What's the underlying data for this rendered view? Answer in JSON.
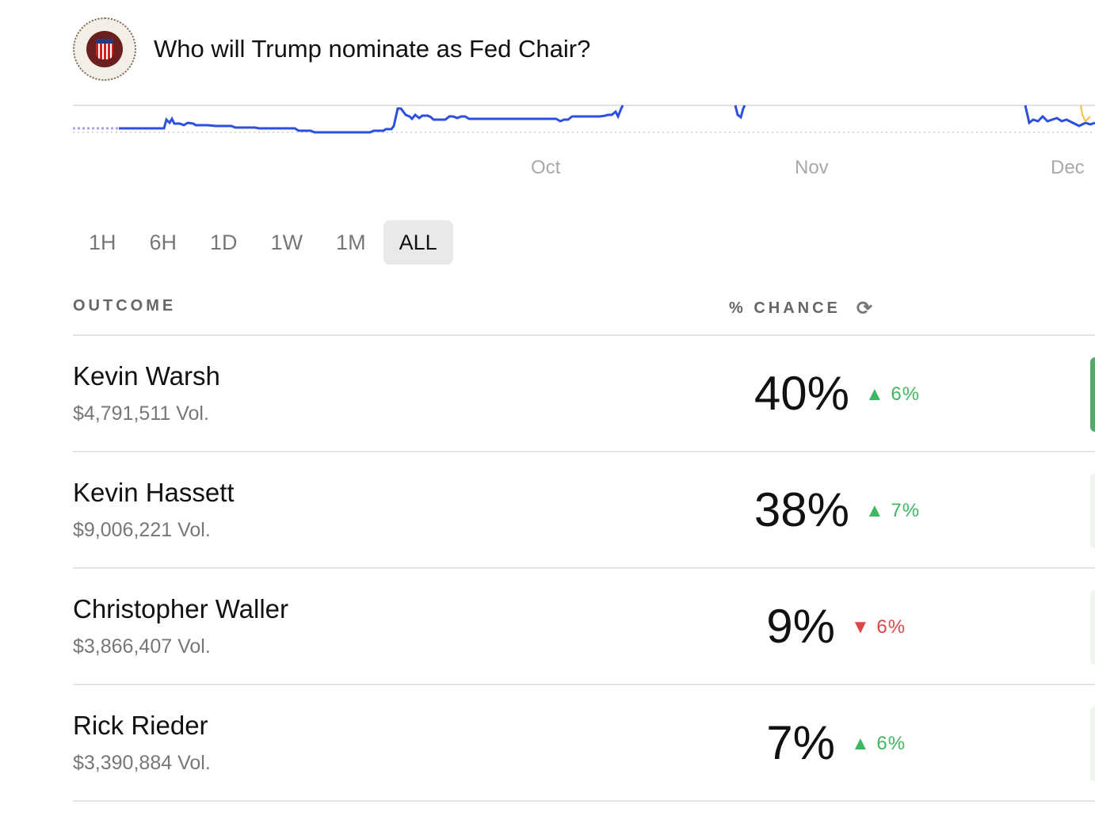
{
  "header": {
    "title": "Who will Trump nominate as Fed Chair?",
    "logo": "federal-reserve-seal"
  },
  "chart": {
    "x_ticks": [
      "Oct",
      "Nov",
      "Dec"
    ],
    "line_color": "#2c4fe0"
  },
  "ranges": [
    {
      "label": "1H"
    },
    {
      "label": "6H"
    },
    {
      "label": "1D"
    },
    {
      "label": "1W"
    },
    {
      "label": "1M"
    },
    {
      "label": "ALL",
      "active": true
    }
  ],
  "columns": {
    "outcome": "OUTCOME",
    "chance": "% CHANCE",
    "refresh_icon": "refresh-icon"
  },
  "outcomes": [
    {
      "name": "Kevin Warsh",
      "volume": "$4,791,511 Vol.",
      "chance": "40%",
      "change": "▲ 6%",
      "direction": "up"
    },
    {
      "name": "Kevin Hassett",
      "volume": "$9,006,221 Vol.",
      "chance": "38%",
      "change": "▲ 7%",
      "direction": "up"
    },
    {
      "name": "Christopher Waller",
      "volume": "$3,866,407 Vol.",
      "chance": "9%",
      "change": "▼ 6%",
      "direction": "down"
    },
    {
      "name": "Rick Rieder",
      "volume": "$3,390,884 Vol.",
      "chance": "7%",
      "change": "▲ 6%",
      "direction": "up"
    }
  ],
  "colors": {
    "up": "#3eb860",
    "down": "#e04545",
    "accent": "#2c4fe0"
  }
}
